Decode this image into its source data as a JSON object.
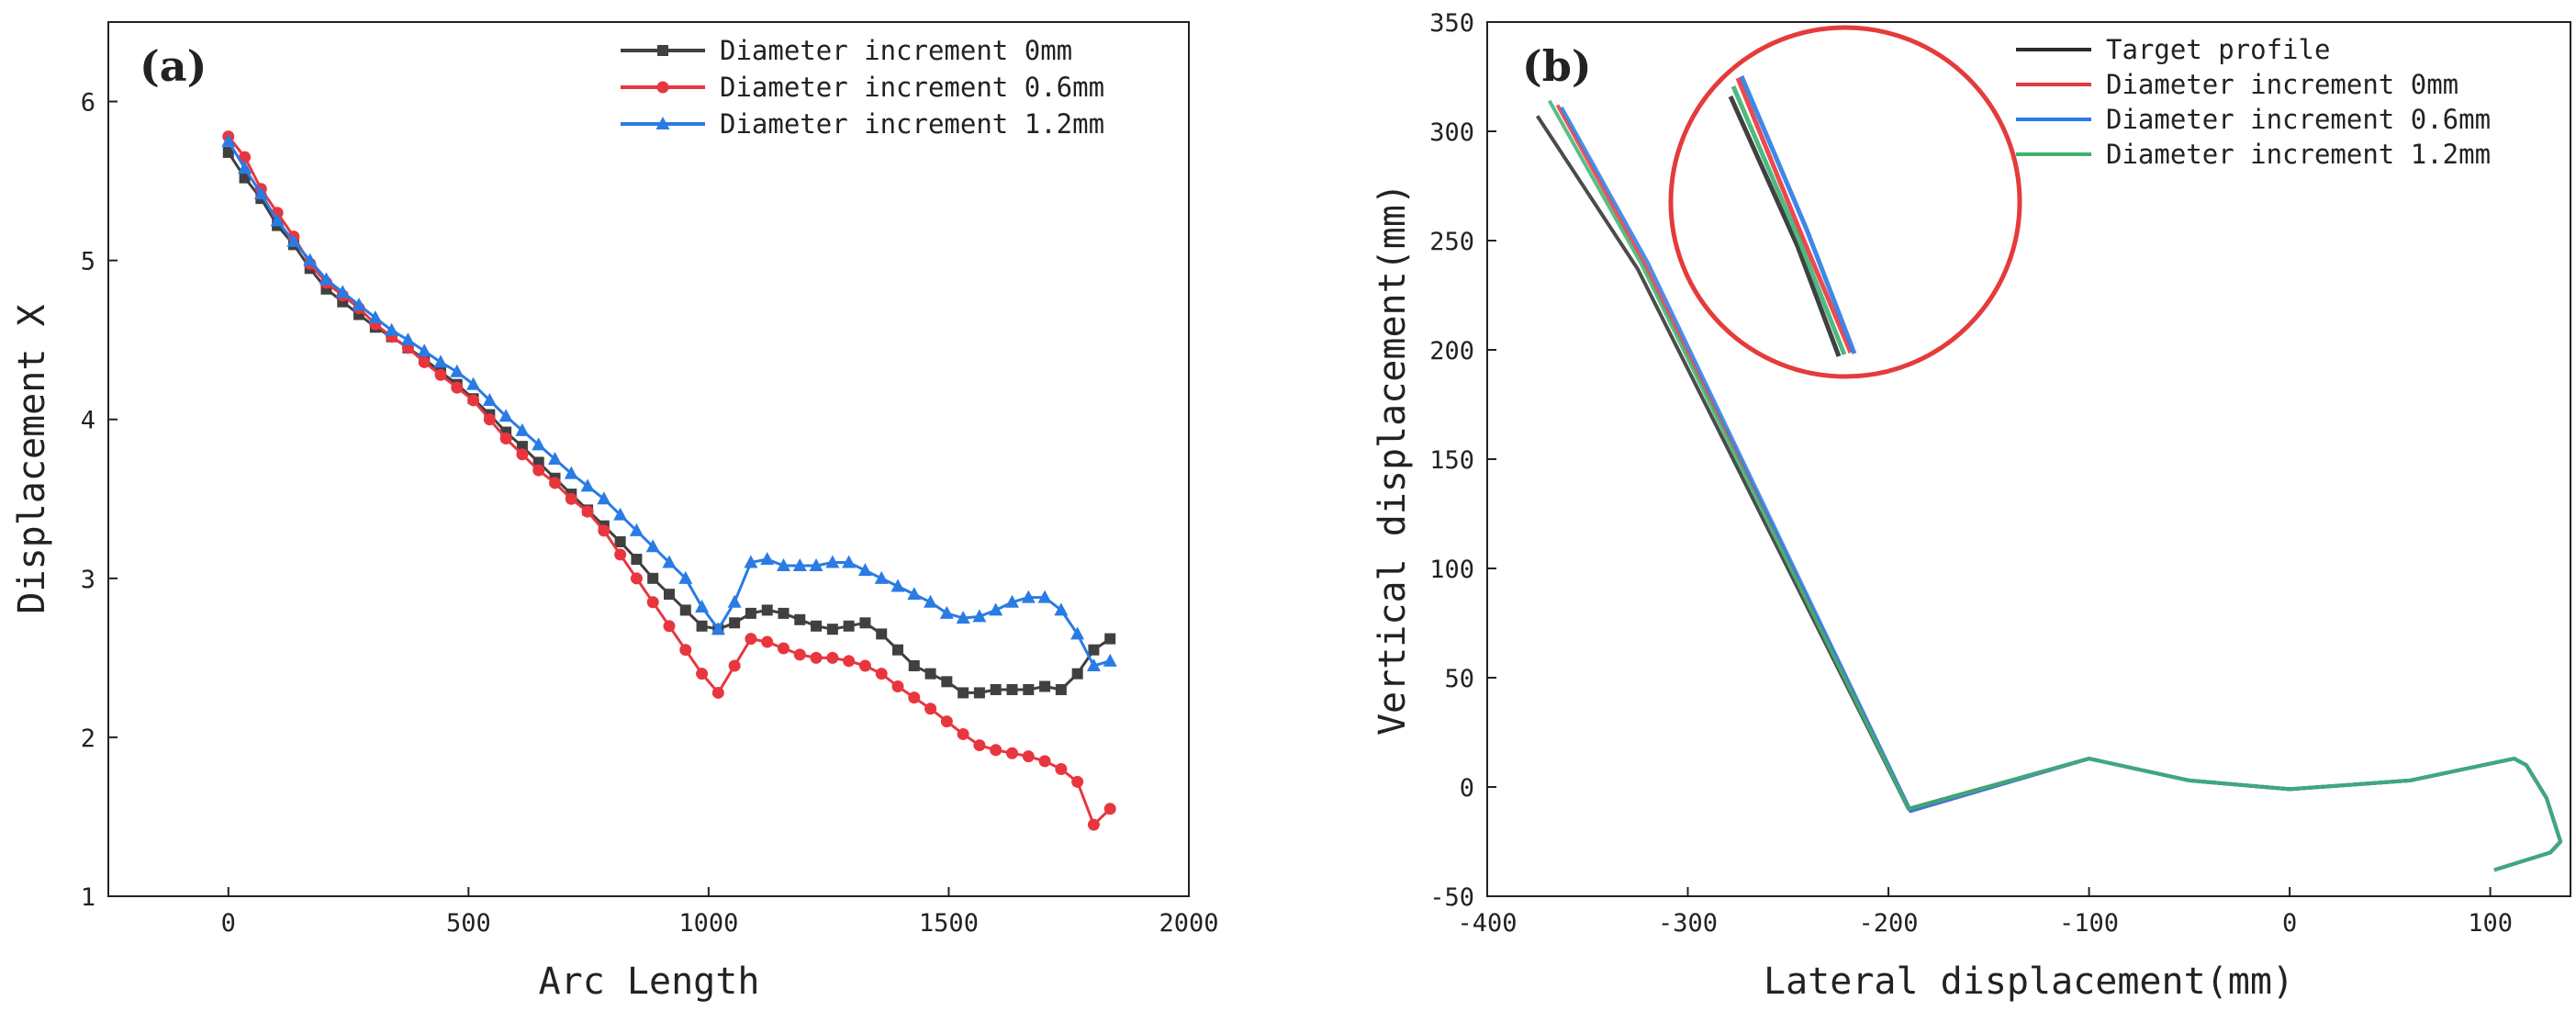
{
  "chart_data": [
    {
      "panel": "(a)",
      "type": "line",
      "xlabel": "Arc Length",
      "ylabel": "Displacement X",
      "xlim": [
        -250,
        2000
      ],
      "ylim": [
        1,
        6.5
      ],
      "xticks": [
        "0",
        "500",
        "1000",
        "1500",
        "2000"
      ],
      "yticks": [
        "1",
        "2",
        "3",
        "4",
        "5",
        "6"
      ],
      "legend_position": "top-right",
      "series": [
        {
          "name": "Diameter increment 0mm",
          "color": "#404040",
          "marker": "square",
          "x": [
            0,
            34,
            68,
            102,
            136,
            170,
            204,
            238,
            272,
            306,
            340,
            374,
            408,
            442,
            476,
            510,
            544,
            578,
            612,
            646,
            680,
            714,
            748,
            782,
            816,
            850,
            884,
            918,
            952,
            986,
            1020,
            1054,
            1088,
            1122,
            1156,
            1190,
            1224,
            1258,
            1292,
            1326,
            1360,
            1394,
            1428,
            1462,
            1496,
            1530,
            1564,
            1598,
            1632,
            1666,
            1700,
            1734,
            1768,
            1802,
            1836
          ],
          "y": [
            5.68,
            5.52,
            5.39,
            5.22,
            5.1,
            4.95,
            4.82,
            4.74,
            4.66,
            4.58,
            4.52,
            4.45,
            4.38,
            4.3,
            4.22,
            4.13,
            4.03,
            3.92,
            3.83,
            3.73,
            3.63,
            3.53,
            3.43,
            3.33,
            3.23,
            3.12,
            3.0,
            2.9,
            2.8,
            2.7,
            2.68,
            2.72,
            2.78,
            2.8,
            2.78,
            2.74,
            2.7,
            2.68,
            2.7,
            2.72,
            2.65,
            2.55,
            2.45,
            2.4,
            2.35,
            2.28,
            2.28,
            2.3,
            2.3,
            2.3,
            2.32,
            2.3,
            2.4,
            2.55,
            2.62
          ]
        },
        {
          "name": "Diameter increment 0.6mm",
          "color": "#e8363f",
          "marker": "circle",
          "x": [
            0,
            34,
            68,
            102,
            136,
            170,
            204,
            238,
            272,
            306,
            340,
            374,
            408,
            442,
            476,
            510,
            544,
            578,
            612,
            646,
            680,
            714,
            748,
            782,
            816,
            850,
            884,
            918,
            952,
            986,
            1020,
            1054,
            1088,
            1122,
            1156,
            1190,
            1224,
            1258,
            1292,
            1326,
            1360,
            1394,
            1428,
            1462,
            1496,
            1530,
            1564,
            1598,
            1632,
            1666,
            1700,
            1734,
            1768,
            1802,
            1836
          ],
          "y": [
            5.78,
            5.65,
            5.45,
            5.3,
            5.15,
            4.98,
            4.86,
            4.78,
            4.7,
            4.6,
            4.52,
            4.45,
            4.36,
            4.28,
            4.2,
            4.12,
            4.0,
            3.88,
            3.78,
            3.68,
            3.6,
            3.5,
            3.42,
            3.3,
            3.15,
            3.0,
            2.85,
            2.7,
            2.55,
            2.4,
            2.28,
            2.45,
            2.62,
            2.6,
            2.56,
            2.52,
            2.5,
            2.5,
            2.48,
            2.45,
            2.4,
            2.32,
            2.25,
            2.18,
            2.1,
            2.02,
            1.95,
            1.92,
            1.9,
            1.88,
            1.85,
            1.8,
            1.72,
            1.45,
            1.55
          ]
        },
        {
          "name": "Diameter increment 1.2mm",
          "color": "#2a7be4",
          "marker": "triangle",
          "x": [
            0,
            34,
            68,
            102,
            136,
            170,
            204,
            238,
            272,
            306,
            340,
            374,
            408,
            442,
            476,
            510,
            544,
            578,
            612,
            646,
            680,
            714,
            748,
            782,
            816,
            850,
            884,
            918,
            952,
            986,
            1020,
            1054,
            1088,
            1122,
            1156,
            1190,
            1224,
            1258,
            1292,
            1326,
            1360,
            1394,
            1428,
            1462,
            1496,
            1530,
            1564,
            1598,
            1632,
            1666,
            1700,
            1734,
            1768,
            1802,
            1836
          ],
          "y": [
            5.75,
            5.58,
            5.42,
            5.25,
            5.12,
            5.0,
            4.88,
            4.8,
            4.72,
            4.64,
            4.56,
            4.5,
            4.43,
            4.36,
            4.3,
            4.22,
            4.12,
            4.02,
            3.93,
            3.84,
            3.75,
            3.66,
            3.58,
            3.5,
            3.4,
            3.3,
            3.2,
            3.1,
            3.0,
            2.82,
            2.68,
            2.85,
            3.1,
            3.12,
            3.08,
            3.08,
            3.08,
            3.1,
            3.1,
            3.05,
            3.0,
            2.95,
            2.9,
            2.85,
            2.78,
            2.75,
            2.76,
            2.8,
            2.85,
            2.88,
            2.88,
            2.8,
            2.65,
            2.45,
            2.48
          ]
        }
      ]
    },
    {
      "panel": "(b)",
      "type": "line",
      "xlabel": "Lateral displacement(mm)",
      "ylabel": "Vertical displacement(mm)",
      "xlim": [
        -400,
        140
      ],
      "ylim": [
        -50,
        350
      ],
      "xticks": [
        "-400",
        "-300",
        "-200",
        "-100",
        "0",
        "100"
      ],
      "yticks": [
        "-50",
        "0",
        "50",
        "100",
        "150",
        "200",
        "250",
        "300",
        "350"
      ],
      "legend_position": "top-right",
      "series": [
        {
          "name": "Target profile",
          "color": "#2b2b2b",
          "x": [
            -375,
            -325,
            -190,
            -100,
            -50,
            0,
            60,
            112,
            118,
            128,
            135,
            130,
            102
          ],
          "y": [
            307,
            237,
            -10,
            13,
            3,
            -1,
            3,
            13,
            10,
            -5,
            -25,
            -30,
            -38
          ]
        },
        {
          "name": "Diameter increment 0mm",
          "color": "#e8363f",
          "x": [
            -365,
            -322,
            -189,
            -100,
            -50,
            0,
            60,
            112,
            118,
            128,
            135,
            130,
            102
          ],
          "y": [
            312,
            240,
            -11,
            13,
            3,
            -1,
            3,
            13,
            10,
            -5,
            -25,
            -30,
            -38
          ]
        },
        {
          "name": "Diameter increment 0.6mm",
          "color": "#2a7be4",
          "x": [
            -363,
            -320,
            -189,
            -100,
            -50,
            0,
            60,
            112,
            118,
            128,
            135,
            130,
            102
          ],
          "y": [
            311,
            240,
            -11,
            13,
            3,
            -1,
            3,
            13,
            10,
            -5,
            -25,
            -30,
            -38
          ]
        },
        {
          "name": "Diameter increment 1.2mm",
          "color": "#3cb371",
          "x": [
            -369,
            -323,
            -190,
            -100,
            -50,
            0,
            60,
            112,
            118,
            128,
            135,
            130,
            102
          ],
          "y": [
            314,
            239,
            -10,
            13,
            3,
            -1,
            3,
            13,
            10,
            -5,
            -25,
            -30,
            -38
          ]
        }
      ]
    }
  ]
}
